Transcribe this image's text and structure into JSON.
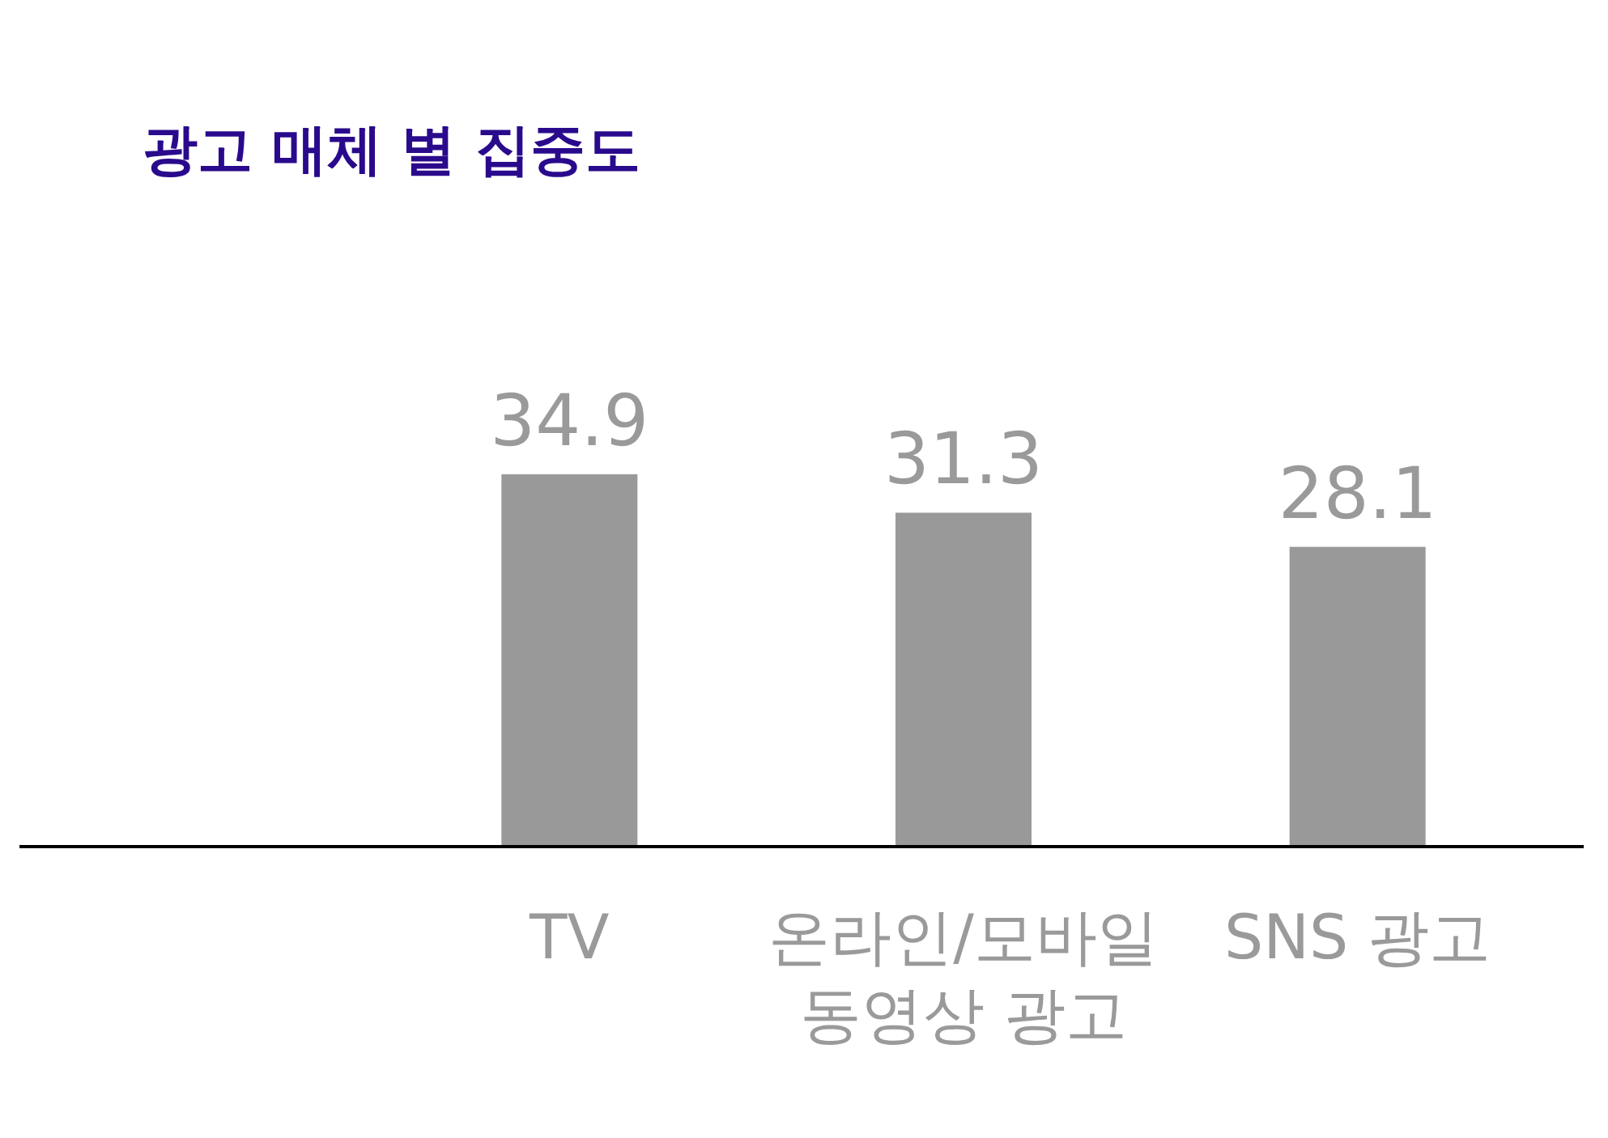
{
  "chart_data": {
    "type": "bar",
    "title": "광고 매체 별 집중도",
    "categories": [
      "TV",
      "온라인/모바일\n동영상 광고",
      "SNS 광고"
    ],
    "values": [
      34.9,
      31.3,
      28.1
    ],
    "color": "#999999",
    "data_labels": true
  }
}
